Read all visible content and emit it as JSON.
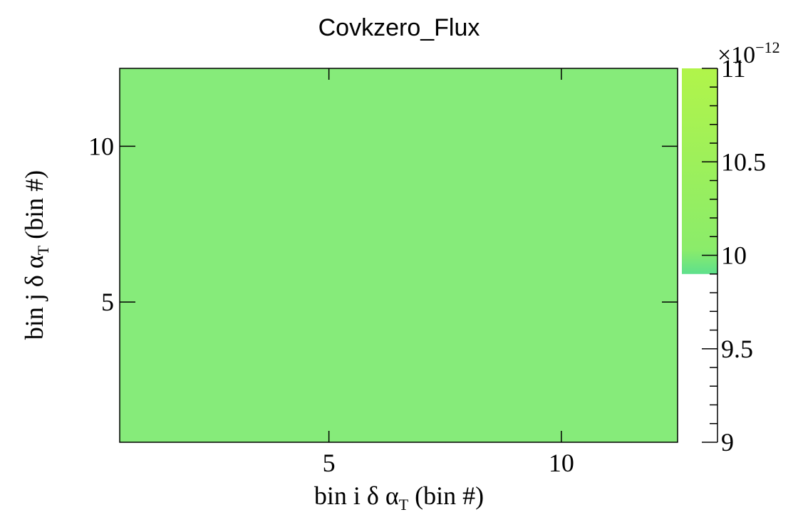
{
  "chart_data": {
    "type": "heatmap",
    "title": "Covkzero_Flux",
    "xlabel": {
      "pre": "bin i δ α",
      "sub": "T",
      "post": " (bin #)"
    },
    "ylabel": {
      "pre": "bin j δ α",
      "sub": "T",
      "post": " (bin #)"
    },
    "xlim": [
      0.5,
      12.5
    ],
    "ylim": [
      0.5,
      12.5
    ],
    "x_ticks": [
      5,
      10
    ],
    "y_ticks": [
      5,
      10
    ],
    "x_tick_labels": [
      "5",
      "10"
    ],
    "y_tick_labels": [
      "5",
      "10"
    ],
    "n_bins_x": 12,
    "n_bins_y": 12,
    "cell_value": 9.95e-12,
    "cell_color": "#86eb7a",
    "colorbar": {
      "range": [
        9,
        11
      ],
      "ticks": [
        9,
        9.5,
        10,
        10.5,
        11
      ],
      "tick_labels": [
        "9",
        "9.5",
        "10",
        "10.5",
        "11"
      ],
      "exponent_label": "×10",
      "exponent_power": "−12",
      "filled_from": 9.9,
      "colors": {
        "bottom": "#5ee08c",
        "middle": "#8bec6a",
        "top": "#b1f44a"
      }
    }
  }
}
